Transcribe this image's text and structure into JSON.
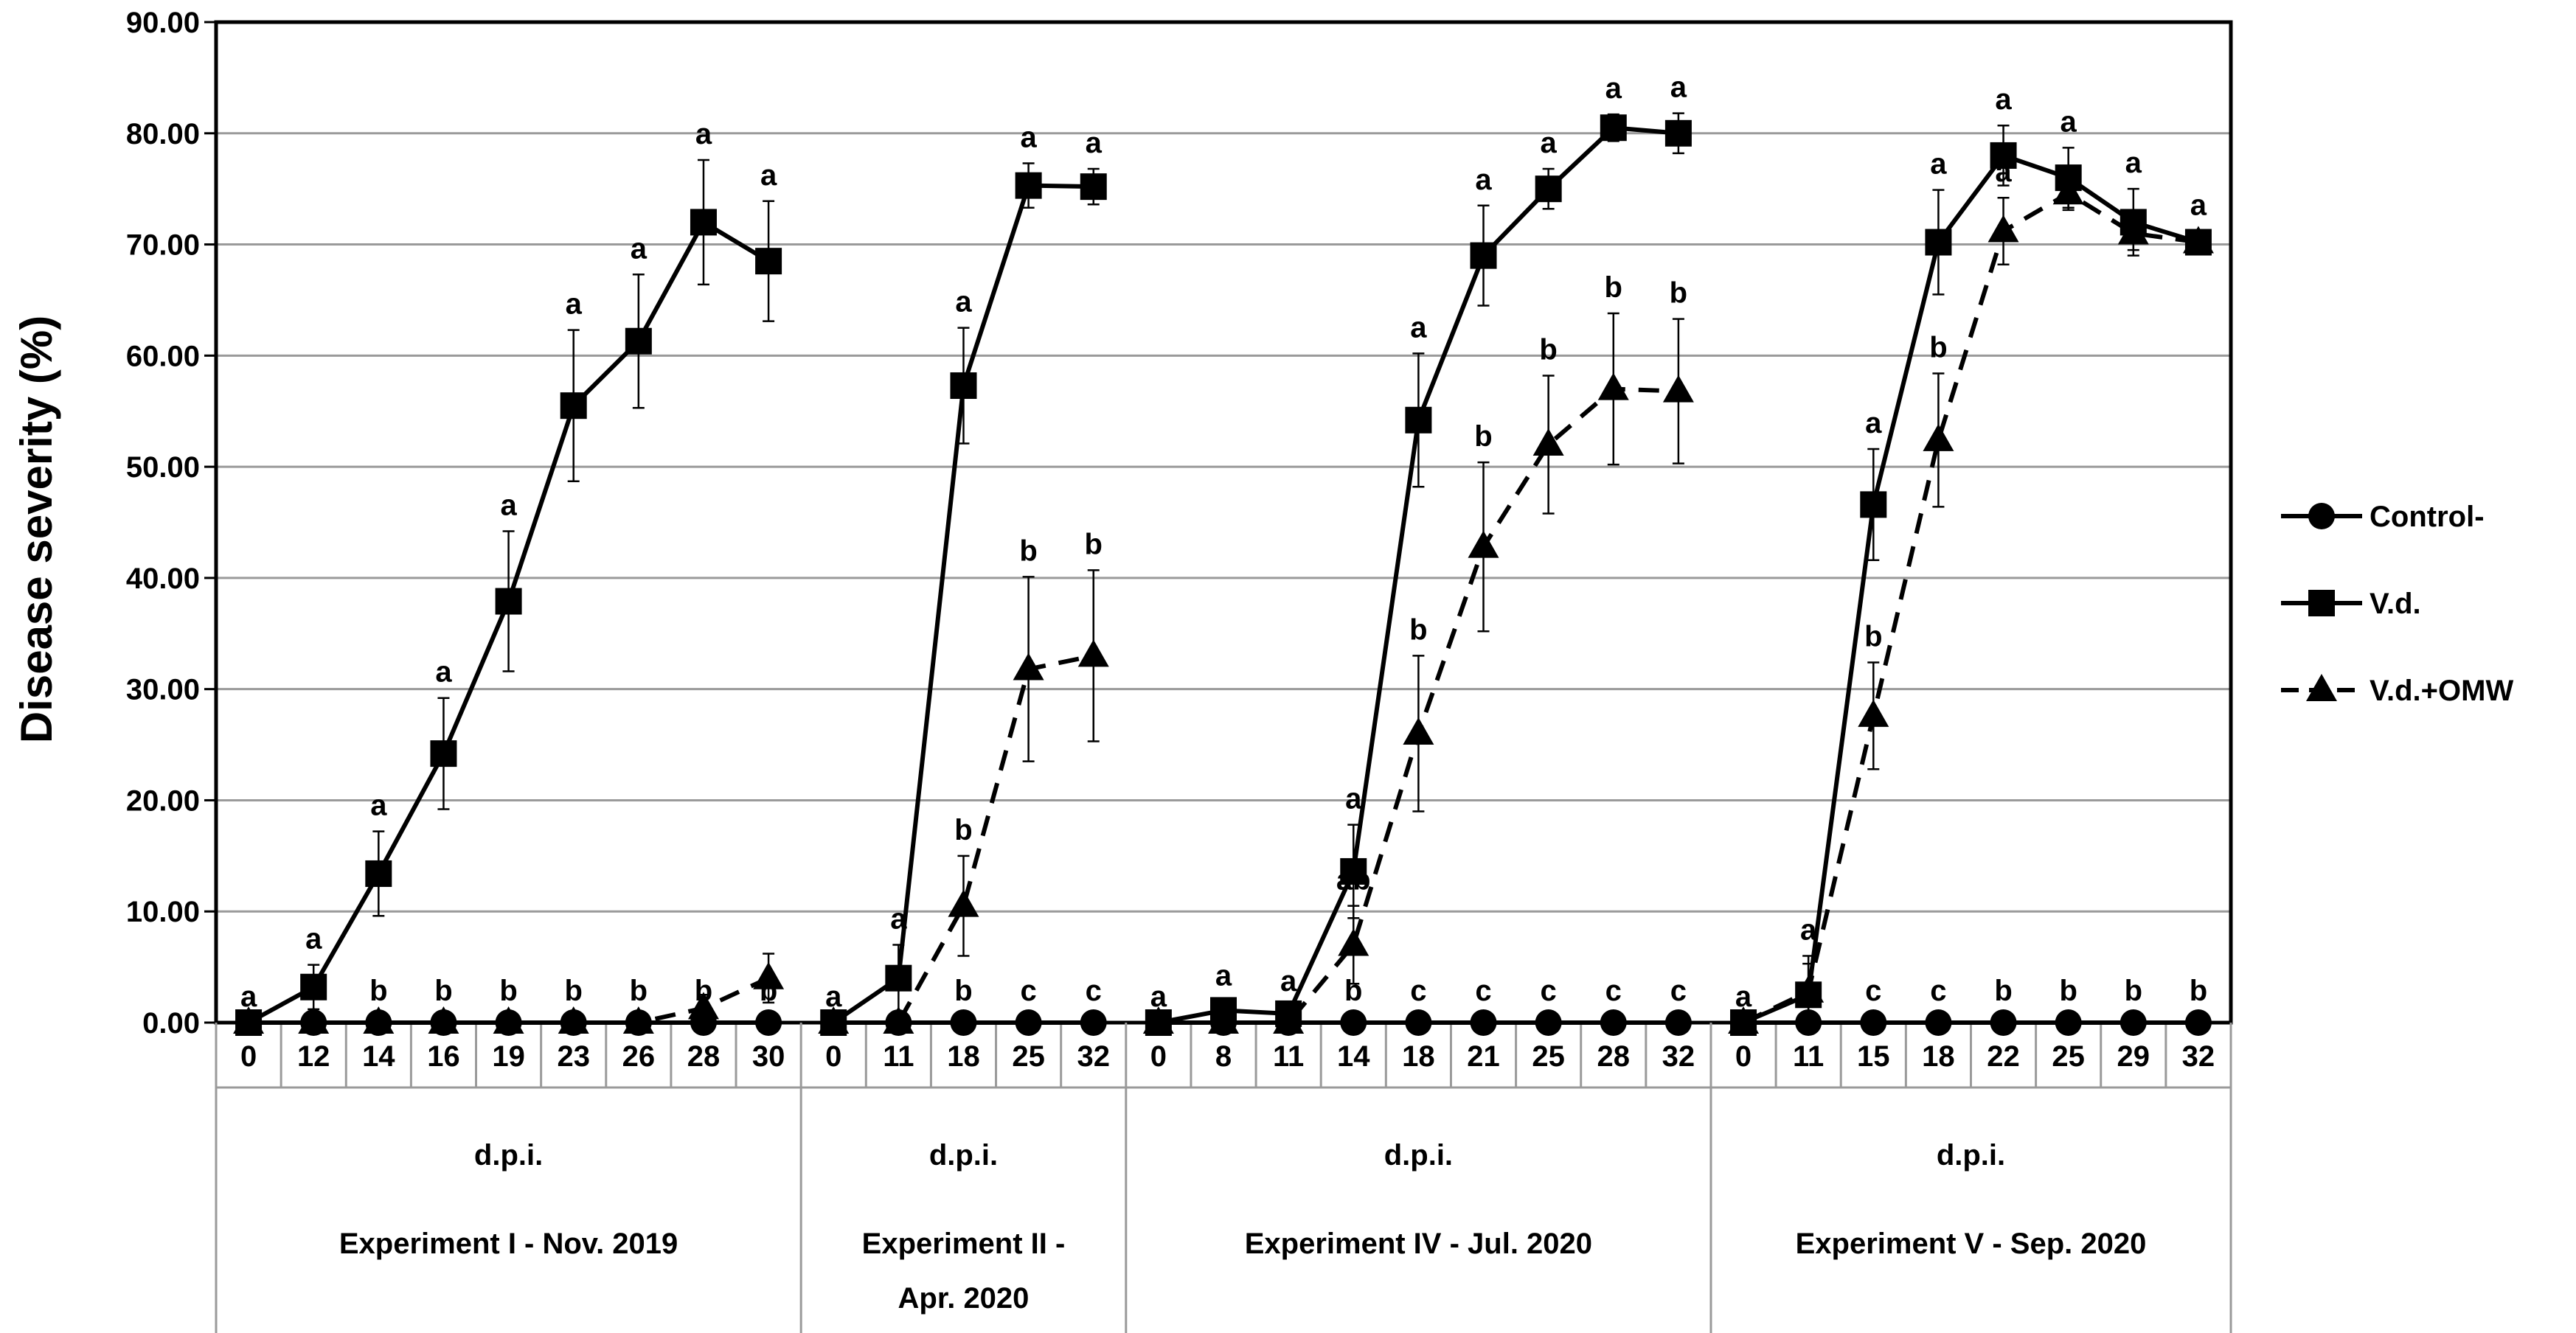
{
  "chart_data": {
    "type": "line",
    "title": "",
    "ylabel": "Disease severity (%)",
    "ylim": [
      0,
      90
    ],
    "yticks": [
      "0.00",
      "10.00",
      "20.00",
      "30.00",
      "40.00",
      "50.00",
      "60.00",
      "70.00",
      "80.00",
      "90.00"
    ],
    "grid": "horizontal",
    "legend_position": "right",
    "xlabel_row": "d.p.i.",
    "groups": [
      {
        "name": "Experiment I - Nov. 2019",
        "xlabel": "d.p.i.",
        "x": [
          "0",
          "12",
          "14",
          "16",
          "19",
          "23",
          "26",
          "28",
          "30"
        ],
        "series": [
          {
            "name": "Control-",
            "values": [
              0,
              0,
              0,
              0,
              0,
              0,
              0,
              0,
              0
            ],
            "err": [
              0,
              0,
              0,
              0,
              0,
              0,
              0,
              0,
              0
            ]
          },
          {
            "name": "V.d.",
            "values": [
              0,
              3.2,
              13.4,
              24.2,
              37.9,
              55.5,
              61.3,
              72.0,
              68.5
            ],
            "err": [
              0,
              2.0,
              3.8,
              5.0,
              6.3,
              6.8,
              6.0,
              5.6,
              5.4
            ]
          },
          {
            "name": "V.d.+OMW",
            "values": [
              0,
              0,
              0,
              0,
              0,
              0,
              0,
              1.3,
              4.0
            ],
            "err": [
              0,
              0,
              0,
              0,
              0,
              0,
              0,
              1.2,
              2.2
            ]
          }
        ],
        "letters": [
          {
            "upper": "a",
            "lower": ""
          },
          {
            "upper": "a",
            "lower": ""
          },
          {
            "upper": "a",
            "lower": "b"
          },
          {
            "upper": "a",
            "lower": "b"
          },
          {
            "upper": "a",
            "lower": "b"
          },
          {
            "upper": "a",
            "lower": "b"
          },
          {
            "upper": "a",
            "lower": "b"
          },
          {
            "upper": "a",
            "lower": "b"
          },
          {
            "upper": "a",
            "lower": "b"
          }
        ]
      },
      {
        "name": "Experiment II - Apr. 2020",
        "name_lines": [
          "Experiment II -",
          "Apr. 2020"
        ],
        "xlabel": "d.p.i.",
        "x": [
          "0",
          "11",
          "18",
          "25",
          "32"
        ],
        "series": [
          {
            "name": "Control-",
            "values": [
              0,
              0,
              0,
              0,
              0
            ],
            "err": [
              0,
              0,
              0,
              0,
              0
            ]
          },
          {
            "name": "V.d.",
            "values": [
              0,
              4.0,
              57.3,
              75.3,
              75.2
            ],
            "err": [
              0,
              3.0,
              5.2,
              2.0,
              1.6
            ]
          },
          {
            "name": "V.d.+OMW",
            "values": [
              0,
              0,
              10.5,
              31.8,
              33.0
            ],
            "err": [
              0,
              0,
              4.5,
              8.3,
              7.7
            ]
          }
        ],
        "letters": [
          {
            "upper": "a",
            "mid": "",
            "lower": ""
          },
          {
            "upper": "a",
            "mid": "",
            "lower": ""
          },
          {
            "upper": "a",
            "mid": "b",
            "lower": "b"
          },
          {
            "upper": "a",
            "mid": "b",
            "lower": "c"
          },
          {
            "upper": "a",
            "mid": "b",
            "lower": "c"
          }
        ]
      },
      {
        "name": "Experiment IV - Jul. 2020",
        "xlabel": "d.p.i.",
        "x": [
          "0",
          "8",
          "11",
          "14",
          "18",
          "21",
          "25",
          "28",
          "32"
        ],
        "series": [
          {
            "name": "Control-",
            "values": [
              0,
              0,
              0,
              0,
              0,
              0,
              0,
              0,
              0
            ],
            "err": [
              0,
              0,
              0,
              0,
              0,
              0,
              0,
              0,
              0
            ]
          },
          {
            "name": "V.d.",
            "values": [
              0,
              1.1,
              0.8,
              13.6,
              54.2,
              69.0,
              75.0,
              80.5,
              80.0
            ],
            "err": [
              0,
              0.8,
              0.6,
              4.2,
              6.0,
              4.5,
              1.8,
              1.2,
              1.8
            ]
          },
          {
            "name": "V.d.+OMW",
            "values": [
              0,
              0,
              0,
              7.0,
              26.0,
              42.8,
              52.0,
              57.0,
              56.8
            ],
            "err": [
              0,
              0,
              0,
              3.5,
              7.0,
              7.6,
              6.2,
              6.8,
              6.5
            ]
          }
        ],
        "letters": [
          {
            "upper": "a",
            "mid": "",
            "lower": ""
          },
          {
            "upper": "a",
            "mid": "",
            "lower": ""
          },
          {
            "upper": "a",
            "mid": "",
            "lower": ""
          },
          {
            "upper": "a",
            "mid": "ab",
            "lower": "b"
          },
          {
            "upper": "a",
            "mid": "b",
            "lower": "c"
          },
          {
            "upper": "a",
            "mid": "b",
            "lower": "c"
          },
          {
            "upper": "a",
            "mid": "b",
            "lower": "c"
          },
          {
            "upper": "a",
            "mid": "b",
            "lower": "c"
          },
          {
            "upper": "a",
            "mid": "b",
            "lower": "c"
          }
        ]
      },
      {
        "name": "Experiment V - Sep. 2020",
        "xlabel": "d.p.i.",
        "x": [
          "0",
          "11",
          "15",
          "18",
          "22",
          "25",
          "29",
          "32"
        ],
        "series": [
          {
            "name": "Control-",
            "values": [
              0,
              0,
              0,
              0,
              0,
              0,
              0,
              0
            ],
            "err": [
              0,
              0,
              0,
              0,
              0,
              0,
              0,
              0
            ]
          },
          {
            "name": "V.d.",
            "values": [
              0,
              2.5,
              46.6,
              70.2,
              78.0,
              76.0,
              72.0,
              70.2
            ],
            "err": [
              0,
              3.5,
              5.0,
              4.7,
              2.7,
              2.7,
              3.0,
              1.0
            ]
          },
          {
            "name": "V.d.+OMW",
            "values": [
              0,
              2.8,
              27.6,
              52.4,
              71.2,
              74.6,
              71.0,
              70.2
            ],
            "err": [
              0,
              2.5,
              4.8,
              6.0,
              3.0,
              1.5,
              1.5,
              0.8
            ]
          }
        ],
        "letters": [
          {
            "upper": "a",
            "mid": "",
            "lower": ""
          },
          {
            "upper": "a",
            "mid": "",
            "lower": ""
          },
          {
            "upper": "a",
            "mid": "b",
            "lower": "c"
          },
          {
            "upper": "a",
            "mid": "b",
            "lower": "c"
          },
          {
            "upper": "a",
            "mid": "a",
            "lower": "b"
          },
          {
            "upper": "a",
            "mid": "",
            "lower": "b"
          },
          {
            "upper": "a",
            "mid": "",
            "lower": "b"
          },
          {
            "upper": "a",
            "mid": "",
            "lower": "b"
          }
        ]
      }
    ],
    "legend": [
      {
        "name": "Control-",
        "marker": "circle",
        "line": "solid"
      },
      {
        "name": "V.d.",
        "marker": "square",
        "line": "solid"
      },
      {
        "name": "V.d.+OMW",
        "marker": "triangle",
        "line": "dashed"
      }
    ]
  }
}
